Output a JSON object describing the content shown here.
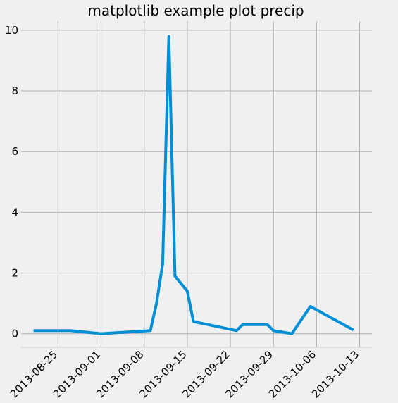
{
  "chart_data": {
    "type": "line",
    "title": "matplotlib example plot precip",
    "xlabel": "",
    "ylabel": "",
    "x_tick_labels": [
      "2013-08-25",
      "2013-09-01",
      "2013-09-08",
      "2013-09-15",
      "2013-09-22",
      "2013-09-29",
      "2013-10-06",
      "2013-10-13"
    ],
    "y_tick_labels": [
      "0",
      "2",
      "4",
      "6",
      "8",
      "10"
    ],
    "xlim": [
      "2013-08-19",
      "2013-10-15"
    ],
    "ylim": [
      -0.45,
      10.3
    ],
    "grid": true,
    "colors": {
      "line": "#008fd5",
      "plot_bg": "#f0f0f0",
      "grid": "#b0b0b0",
      "axis": "#cbcbcb"
    },
    "series": [
      {
        "x": [
          "2013-08-21",
          "2013-08-27",
          "2013-09-01",
          "2013-09-09",
          "2013-09-10",
          "2013-09-11",
          "2013-09-12",
          "2013-09-13",
          "2013-09-15",
          "2013-09-16",
          "2013-09-23",
          "2013-09-24",
          "2013-09-28",
          "2013-09-29",
          "2013-10-02",
          "2013-10-05",
          "2013-10-12"
        ],
        "y": [
          0.1,
          0.1,
          0.0,
          0.1,
          1.0,
          2.3,
          9.8,
          1.9,
          1.4,
          0.4,
          0.1,
          0.3,
          0.3,
          0.1,
          0.0,
          0.9,
          0.12
        ]
      }
    ]
  }
}
